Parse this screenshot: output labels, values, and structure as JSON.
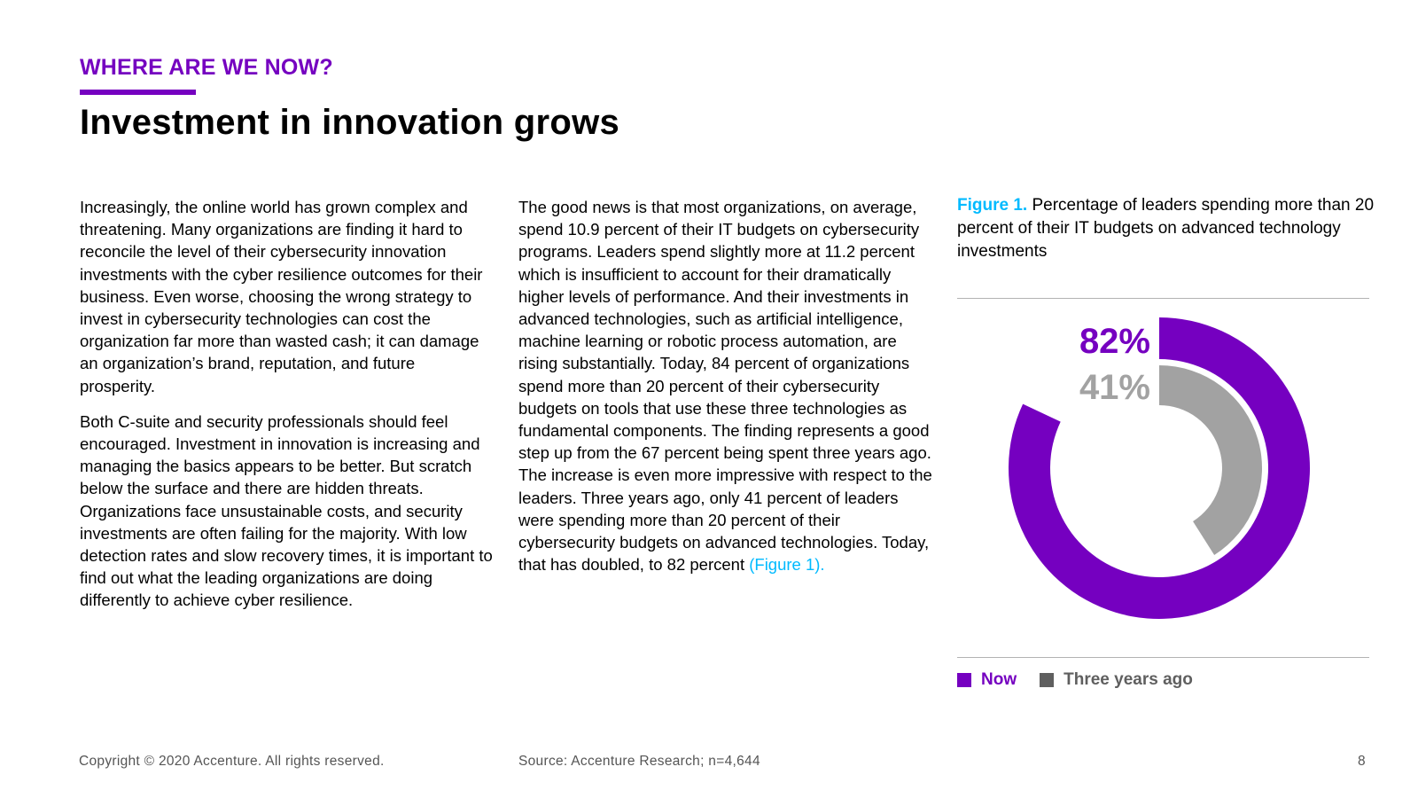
{
  "header": {
    "eyebrow": "WHERE ARE WE NOW?",
    "title": "Investment in innovation grows"
  },
  "body": {
    "col1_p1": "Increasingly, the online world has grown complex and threatening. Many organizations are finding it hard to reconcile the level of their cybersecurity innovation investments with the cyber resilience outcomes for their business. Even worse, choosing the wrong strategy to invest in cybersecurity technologies can cost the organization far more than wasted cash; it can damage an organization’s brand, reputation, and future prosperity.",
    "col1_p2": "Both C-suite and security professionals should feel encouraged. Investment in innovation is increasing and managing the basics appears to be better. But scratch below the surface and there are hidden threats. Organizations face unsustainable costs, and security investments are often failing for the majority. With low detection rates and slow recovery times, it is important to find out what the leading organizations are doing differently to achieve cyber resilience.",
    "col2_p1": "The good news is that most organizations, on average, spend 10.9 percent of their IT budgets on cybersecurity programs. Leaders spend slightly more at 11.2 percent which is insufficient to account for their dramatically higher levels of performance. And their investments in advanced technologies, such as artificial intelligence, machine learning or robotic process automation, are rising substantially. Today, 84 percent of organizations spend more than 20 percent of their cybersecurity budgets on tools that use these three technologies as fundamental components. The finding represents a good step up from the 67 percent being spent three years ago. The increase is even more impressive with respect to the leaders. Three years ago, only 41 percent of leaders were spending more than 20 percent of their cybersecurity budgets on advanced technologies. Today, that has doubled, to 82 percent",
    "col2_link": "(Figure 1)."
  },
  "figure": {
    "label": "Figure 1.",
    "caption": "Percentage of leaders spending more than 20 percent of their IT budgets on advanced technology investments"
  },
  "chart_data": {
    "type": "pie",
    "subtype": "concentric-donut",
    "title": "Percentage of leaders spending more than 20 percent of their IT budgets on advanced technology investments",
    "series": [
      {
        "name": "Now",
        "value": 82,
        "label": "82%",
        "color": "#7500c0"
      },
      {
        "name": "Three years ago",
        "value": 41,
        "label": "41%",
        "color": "#a2a2a2"
      }
    ],
    "legend": [
      "Now",
      "Three years ago"
    ],
    "legend_position": "bottom-left",
    "max": 100
  },
  "legend_colors": {
    "now": "#7500c0",
    "three_years_ago": "#5f5f5f"
  },
  "footer": {
    "copyright": "Copyright © 2020 Accenture. All rights reserved.",
    "source": "Source: Accenture Research; n=4,644",
    "page_number": "8"
  }
}
